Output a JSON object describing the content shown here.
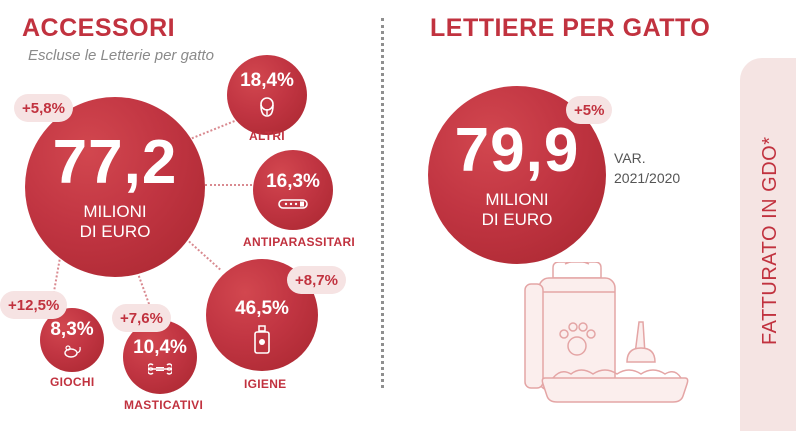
{
  "accessori": {
    "title": "ACCESSORI",
    "subtitle": "Escluse le Letterie per gatto",
    "total_value": "77,2",
    "total_unit_line1": "MILIONI",
    "total_unit_line2": "DI EURO",
    "total_growth": "+5,8%",
    "categories": [
      {
        "name": "ALTRI",
        "share": "18,4%",
        "growth": ""
      },
      {
        "name": "ANTIPARASSITARI",
        "share": "16,3%",
        "growth": ""
      },
      {
        "name": "IGIENE",
        "share": "46,5%",
        "growth": "+8,7%"
      },
      {
        "name": "GIOCHI",
        "share": "8,3%",
        "growth": "+12,5%"
      },
      {
        "name": "MASTICATIVI",
        "share": "10,4%",
        "growth": "+7,6%"
      }
    ]
  },
  "lettiere": {
    "title": "LETTIERE PER GATTO",
    "value": "79,9",
    "unit_line1": "MILIONI",
    "unit_line2": "DI EURO",
    "growth": "+5%",
    "var_line1": "VAR.",
    "var_line2": "2021/2020"
  },
  "side_label": "FATTURATO IN GDO*",
  "colors": {
    "accent": "#c1323f",
    "badge_bg": "#f6e3e3",
    "panel_bg": "#f5e4e3"
  }
}
